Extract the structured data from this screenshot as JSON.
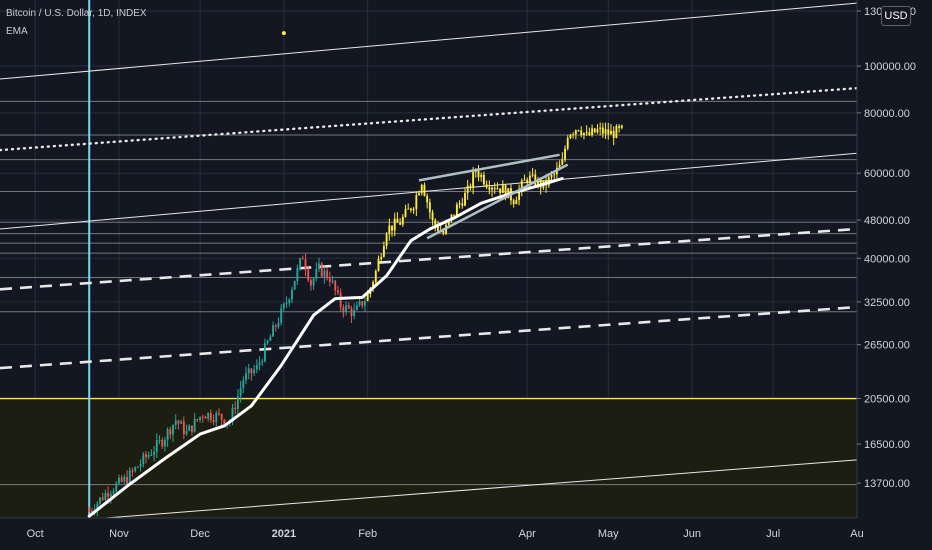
{
  "legend": {
    "symbol": "Bitcoin / U.S. Dollar, 1D, INDEX",
    "indicator": "EMA"
  },
  "currency": "USD",
  "colors": {
    "background": "#131722",
    "up": "#26a69a",
    "down": "#ef5350",
    "highlight": "#ffeb3b",
    "ema": "#ffffff",
    "zone": "#1d1e12"
  },
  "chart_data": {
    "type": "candlestick",
    "symbol": "Bitcoin / U.S. Dollar",
    "interval": "1D",
    "x_range": [
      "2020-09-18",
      "2021-08-01"
    ],
    "y_range": [
      11600,
      137000
    ],
    "y_scale": "log",
    "price_axis_labels": [
      "130000.00",
      "100000.00",
      "80000.00",
      "60000.00",
      "48000.00",
      "40000.00",
      "32500.00",
      "26500.00",
      "20500.00",
      "16500.00",
      "13700.00"
    ],
    "time_axis_labels": [
      "Oct",
      "Nov",
      "Dec",
      "2021",
      "Feb",
      "Apr",
      "May",
      "Jun",
      "Jul",
      "Au"
    ],
    "time_axis_dates": [
      "2020-10-01",
      "2020-11-01",
      "2020-12-01",
      "2021-01-01",
      "2021-02-01",
      "2021-04-01",
      "2021-05-01",
      "2021-06-01",
      "2021-07-01",
      "2021-08-01"
    ],
    "horizontal_levels": [
      84500,
      72000,
      64000,
      55000,
      47500,
      45000,
      43000,
      41000,
      36500,
      31000,
      13600
    ],
    "support_zone": [
      11600,
      20500
    ],
    "vertical_marker": "2020-10-21",
    "trendlines": [
      {
        "style": "solid",
        "from": [
          "2020-09-18",
          94000
        ],
        "to": [
          "2021-08-01",
          135000
        ]
      },
      {
        "style": "solid",
        "from": [
          "2020-09-18",
          46000
        ],
        "to": [
          "2021-08-01",
          66000
        ]
      },
      {
        "style": "solid",
        "from": [
          "2020-10-27",
          11600
        ],
        "to": [
          "2021-08-01",
          15300
        ]
      },
      {
        "style": "dotted",
        "from": [
          "2020-09-18",
          67000
        ],
        "to": [
          "2021-08-01",
          90000
        ]
      },
      {
        "style": "dashed",
        "from": [
          "2020-09-18",
          34500
        ],
        "to": [
          "2021-08-01",
          46000
        ]
      },
      {
        "style": "dashed",
        "from": [
          "2020-09-18",
          23700
        ],
        "to": [
          "2021-08-01",
          31700
        ]
      }
    ],
    "wedge_lines": [
      {
        "from": [
          "2021-02-20",
          58000
        ],
        "to": [
          "2021-04-13",
          65500
        ]
      },
      {
        "from": [
          "2021-02-23",
          44000
        ],
        "to": [
          "2021-04-16",
          62500
        ]
      }
    ],
    "price_path": [
      [
        "2020-10-21",
        12000
      ],
      [
        "2020-10-28",
        13200
      ],
      [
        "2020-11-04",
        14000
      ],
      [
        "2020-11-10",
        15300
      ],
      [
        "2020-11-17",
        16800
      ],
      [
        "2020-11-22",
        18500
      ],
      [
        "2020-11-26",
        17400
      ],
      [
        "2020-12-02",
        19100
      ],
      [
        "2020-12-08",
        18800
      ],
      [
        "2020-12-12",
        18400
      ],
      [
        "2020-12-17",
        22500
      ],
      [
        "2020-12-22",
        23700
      ],
      [
        "2020-12-27",
        27500
      ],
      [
        "2021-01-02",
        32500
      ],
      [
        "2021-01-08",
        40500
      ],
      [
        "2021-01-11",
        35500
      ],
      [
        "2021-01-14",
        38000
      ],
      [
        "2021-01-18",
        36500
      ],
      [
        "2021-01-22",
        32000
      ],
      [
        "2021-01-27",
        30800
      ],
      [
        "2021-02-01",
        33500
      ],
      [
        "2021-02-04",
        37500
      ],
      [
        "2021-02-08",
        46000
      ],
      [
        "2021-02-13",
        47500
      ],
      [
        "2021-02-18",
        52000
      ],
      [
        "2021-02-21",
        58000
      ],
      [
        "2021-02-25",
        47500
      ],
      [
        "2021-03-01",
        45000
      ],
      [
        "2021-03-06",
        51000
      ],
      [
        "2021-03-10",
        55000
      ],
      [
        "2021-03-13",
        61000
      ],
      [
        "2021-03-17",
        57500
      ],
      [
        "2021-03-23",
        55500
      ],
      [
        "2021-03-27",
        53000
      ],
      [
        "2021-04-01",
        58800
      ],
      [
        "2021-04-07",
        56500
      ],
      [
        "2021-04-11",
        59500
      ],
      [
        "2021-04-14",
        63000
      ],
      [
        "2021-04-16",
        72500
      ],
      [
        "2021-04-20",
        75000
      ],
      [
        "2021-04-23",
        71500
      ],
      [
        "2021-04-27",
        73500
      ],
      [
        "2021-05-02",
        72500
      ],
      [
        "2021-05-06",
        73500
      ]
    ],
    "highlight_start": "2021-02-01",
    "ema_path": [
      [
        "2020-10-21",
        11700
      ],
      [
        "2020-11-04",
        13500
      ],
      [
        "2020-11-18",
        15400
      ],
      [
        "2020-12-01",
        17300
      ],
      [
        "2020-12-10",
        18000
      ],
      [
        "2020-12-20",
        19800
      ],
      [
        "2020-12-31",
        24000
      ],
      [
        "2021-01-12",
        30500
      ],
      [
        "2021-01-20",
        33000
      ],
      [
        "2021-01-30",
        33200
      ],
      [
        "2021-02-08",
        36800
      ],
      [
        "2021-02-17",
        43500
      ],
      [
        "2021-02-24",
        46000
      ],
      [
        "2021-03-05",
        48500
      ],
      [
        "2021-03-15",
        52000
      ],
      [
        "2021-03-26",
        54500
      ],
      [
        "2021-04-05",
        56500
      ],
      [
        "2021-04-14",
        58500
      ]
    ],
    "marker_point": [
      "2021-01-01",
      117000
    ]
  }
}
